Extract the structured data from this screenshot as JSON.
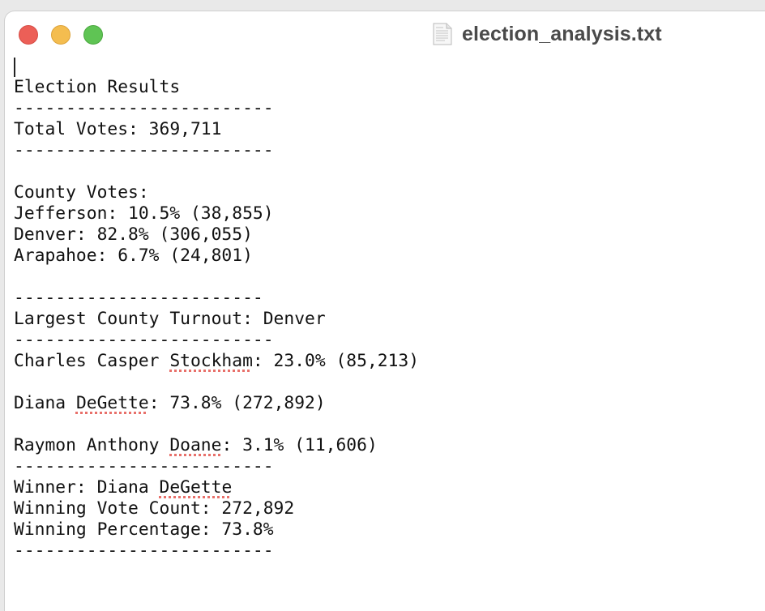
{
  "window": {
    "title": "election_analysis.txt",
    "icon": "text-document-icon"
  },
  "document": {
    "lines": [
      "Election Results",
      "-------------------------",
      "Total Votes: 369,711",
      "-------------------------",
      "",
      "County Votes:",
      "Jefferson: 10.5% (38,855)",
      "Denver: 82.8% (306,055)",
      "Arapahoe: 6.7% (24,801)",
      "",
      "------------------------",
      "Largest County Turnout: Denver",
      "-------------------------",
      "Charles Casper Stockham: 23.0% (85,213)",
      "",
      "Diana DeGette: 73.8% (272,892)",
      "",
      "Raymon Anthony Doane: 3.1% (11,606)",
      "-------------------------",
      "Winner: Diana DeGette",
      "Winning Vote Count: 272,892",
      "Winning Percentage: 73.8%",
      "-------------------------"
    ],
    "spellcheck_flagged_words": [
      "Stockham",
      "DeGette",
      "Doane",
      "DeGette"
    ]
  },
  "colors": {
    "close": "#ec5f57",
    "minimize": "#f4bd4f",
    "zoom": "#5fc454",
    "spellcheck_underline": "#e8706a"
  }
}
